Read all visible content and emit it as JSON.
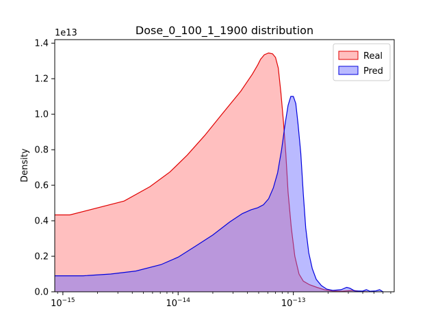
{
  "chart_data": {
    "type": "area",
    "title": "Dose_0_100_1_1900 distribution",
    "xlabel": "",
    "ylabel": "Density",
    "y_offset_text": "1e13",
    "x_scale": "log",
    "xlim": [
      8.5e-16,
      7.5e-13
    ],
    "ylim": [
      0,
      1.42
    ],
    "y_unit_multiplier": 10000000000000.0,
    "x_ticks": [
      {
        "value": 1e-15,
        "label": "10−15"
      },
      {
        "value": 1e-14,
        "label": "10−14"
      },
      {
        "value": 1e-13,
        "label": "10−13"
      }
    ],
    "y_ticks": [
      {
        "value": 0.0,
        "label": "0.0"
      },
      {
        "value": 0.2,
        "label": "0.2"
      },
      {
        "value": 0.4,
        "label": "0.4"
      },
      {
        "value": 0.6,
        "label": "0.6"
      },
      {
        "value": 0.8,
        "label": "0.8"
      },
      {
        "value": 1.0,
        "label": "1.0"
      },
      {
        "value": 1.2,
        "label": "1.2"
      },
      {
        "value": 1.4,
        "label": "1.4"
      }
    ],
    "grid": false,
    "legend_position": "upper right",
    "series": [
      {
        "name": "Real",
        "line_color": "#e00000",
        "fill_color": "#ff6666",
        "fill_opacity": 0.42,
        "points": [
          [
            8.5e-16,
            0.433
          ],
          [
            1.15e-15,
            0.433
          ],
          [
            3.4e-15,
            0.511
          ],
          [
            5.7e-15,
            0.592
          ],
          [
            8.5e-15,
            0.675
          ],
          [
            1.2e-14,
            0.77
          ],
          [
            1.7e-14,
            0.88
          ],
          [
            2.4e-14,
            1.0
          ],
          [
            3.5e-14,
            1.13
          ],
          [
            4.4e-14,
            1.225
          ],
          [
            4.9e-14,
            1.277
          ],
          [
            5.2e-14,
            1.31
          ],
          [
            5.6e-14,
            1.335
          ],
          [
            6.1e-14,
            1.345
          ],
          [
            6.6e-14,
            1.34
          ],
          [
            7e-14,
            1.32
          ],
          [
            7.4e-14,
            1.26
          ],
          [
            7.8e-14,
            1.12
          ],
          [
            8.2e-14,
            0.96
          ],
          [
            8.6e-14,
            0.78
          ],
          [
            9e-14,
            0.56
          ],
          [
            9.6e-14,
            0.36
          ],
          [
            1.03e-13,
            0.2
          ],
          [
            1.12e-13,
            0.1
          ],
          [
            1.22e-13,
            0.06
          ],
          [
            1.38e-13,
            0.04
          ],
          [
            1.6e-13,
            0.025
          ],
          [
            1.85e-13,
            0.012
          ],
          [
            2.15e-13,
            0.005
          ],
          [
            2.6e-13,
            0.003
          ],
          [
            3.3e-13,
            0.008
          ],
          [
            3.8e-13,
            0.002
          ],
          [
            4.4e-13,
            0.0
          ]
        ]
      },
      {
        "name": "Pred",
        "line_color": "#0000dd",
        "fill_color": "#6666ff",
        "fill_opacity": 0.45,
        "points": [
          [
            8.5e-16,
            0.09
          ],
          [
            1.5e-15,
            0.09
          ],
          [
            2.6e-15,
            0.1
          ],
          [
            4.3e-15,
            0.117
          ],
          [
            7.1e-15,
            0.153
          ],
          [
            1e-14,
            0.195
          ],
          [
            1.4e-14,
            0.255
          ],
          [
            2e-14,
            0.32
          ],
          [
            2.8e-14,
            0.393
          ],
          [
            3.6e-14,
            0.44
          ],
          [
            4.3e-14,
            0.462
          ],
          [
            4.9e-14,
            0.473
          ],
          [
            5.5e-14,
            0.49
          ],
          [
            6.1e-14,
            0.524
          ],
          [
            6.7e-14,
            0.585
          ],
          [
            7.3e-14,
            0.67
          ],
          [
            7.9e-14,
            0.8
          ],
          [
            8.5e-14,
            0.95
          ],
          [
            9e-14,
            1.05
          ],
          [
            9.5e-14,
            1.1
          ],
          [
            1e-13,
            1.1
          ],
          [
            1.05e-13,
            1.06
          ],
          [
            1.1e-13,
            0.94
          ],
          [
            1.16e-13,
            0.78
          ],
          [
            1.22e-13,
            0.55
          ],
          [
            1.28e-13,
            0.36
          ],
          [
            1.36e-13,
            0.22
          ],
          [
            1.46e-13,
            0.13
          ],
          [
            1.58e-13,
            0.07
          ],
          [
            1.75e-13,
            0.035
          ],
          [
            1.95e-13,
            0.015
          ],
          [
            2.2e-13,
            0.008
          ],
          [
            2.6e-13,
            0.012
          ],
          [
            2.9e-13,
            0.025
          ],
          [
            3.1e-13,
            0.02
          ],
          [
            3.4e-13,
            0.005
          ],
          [
            4e-13,
            0.004
          ],
          [
            4.3e-13,
            0.012
          ],
          [
            4.6e-13,
            0.003
          ],
          [
            5.2e-13,
            0.005
          ],
          [
            5.6e-13,
            0.012
          ],
          [
            6e-13,
            0.0
          ]
        ]
      }
    ]
  }
}
